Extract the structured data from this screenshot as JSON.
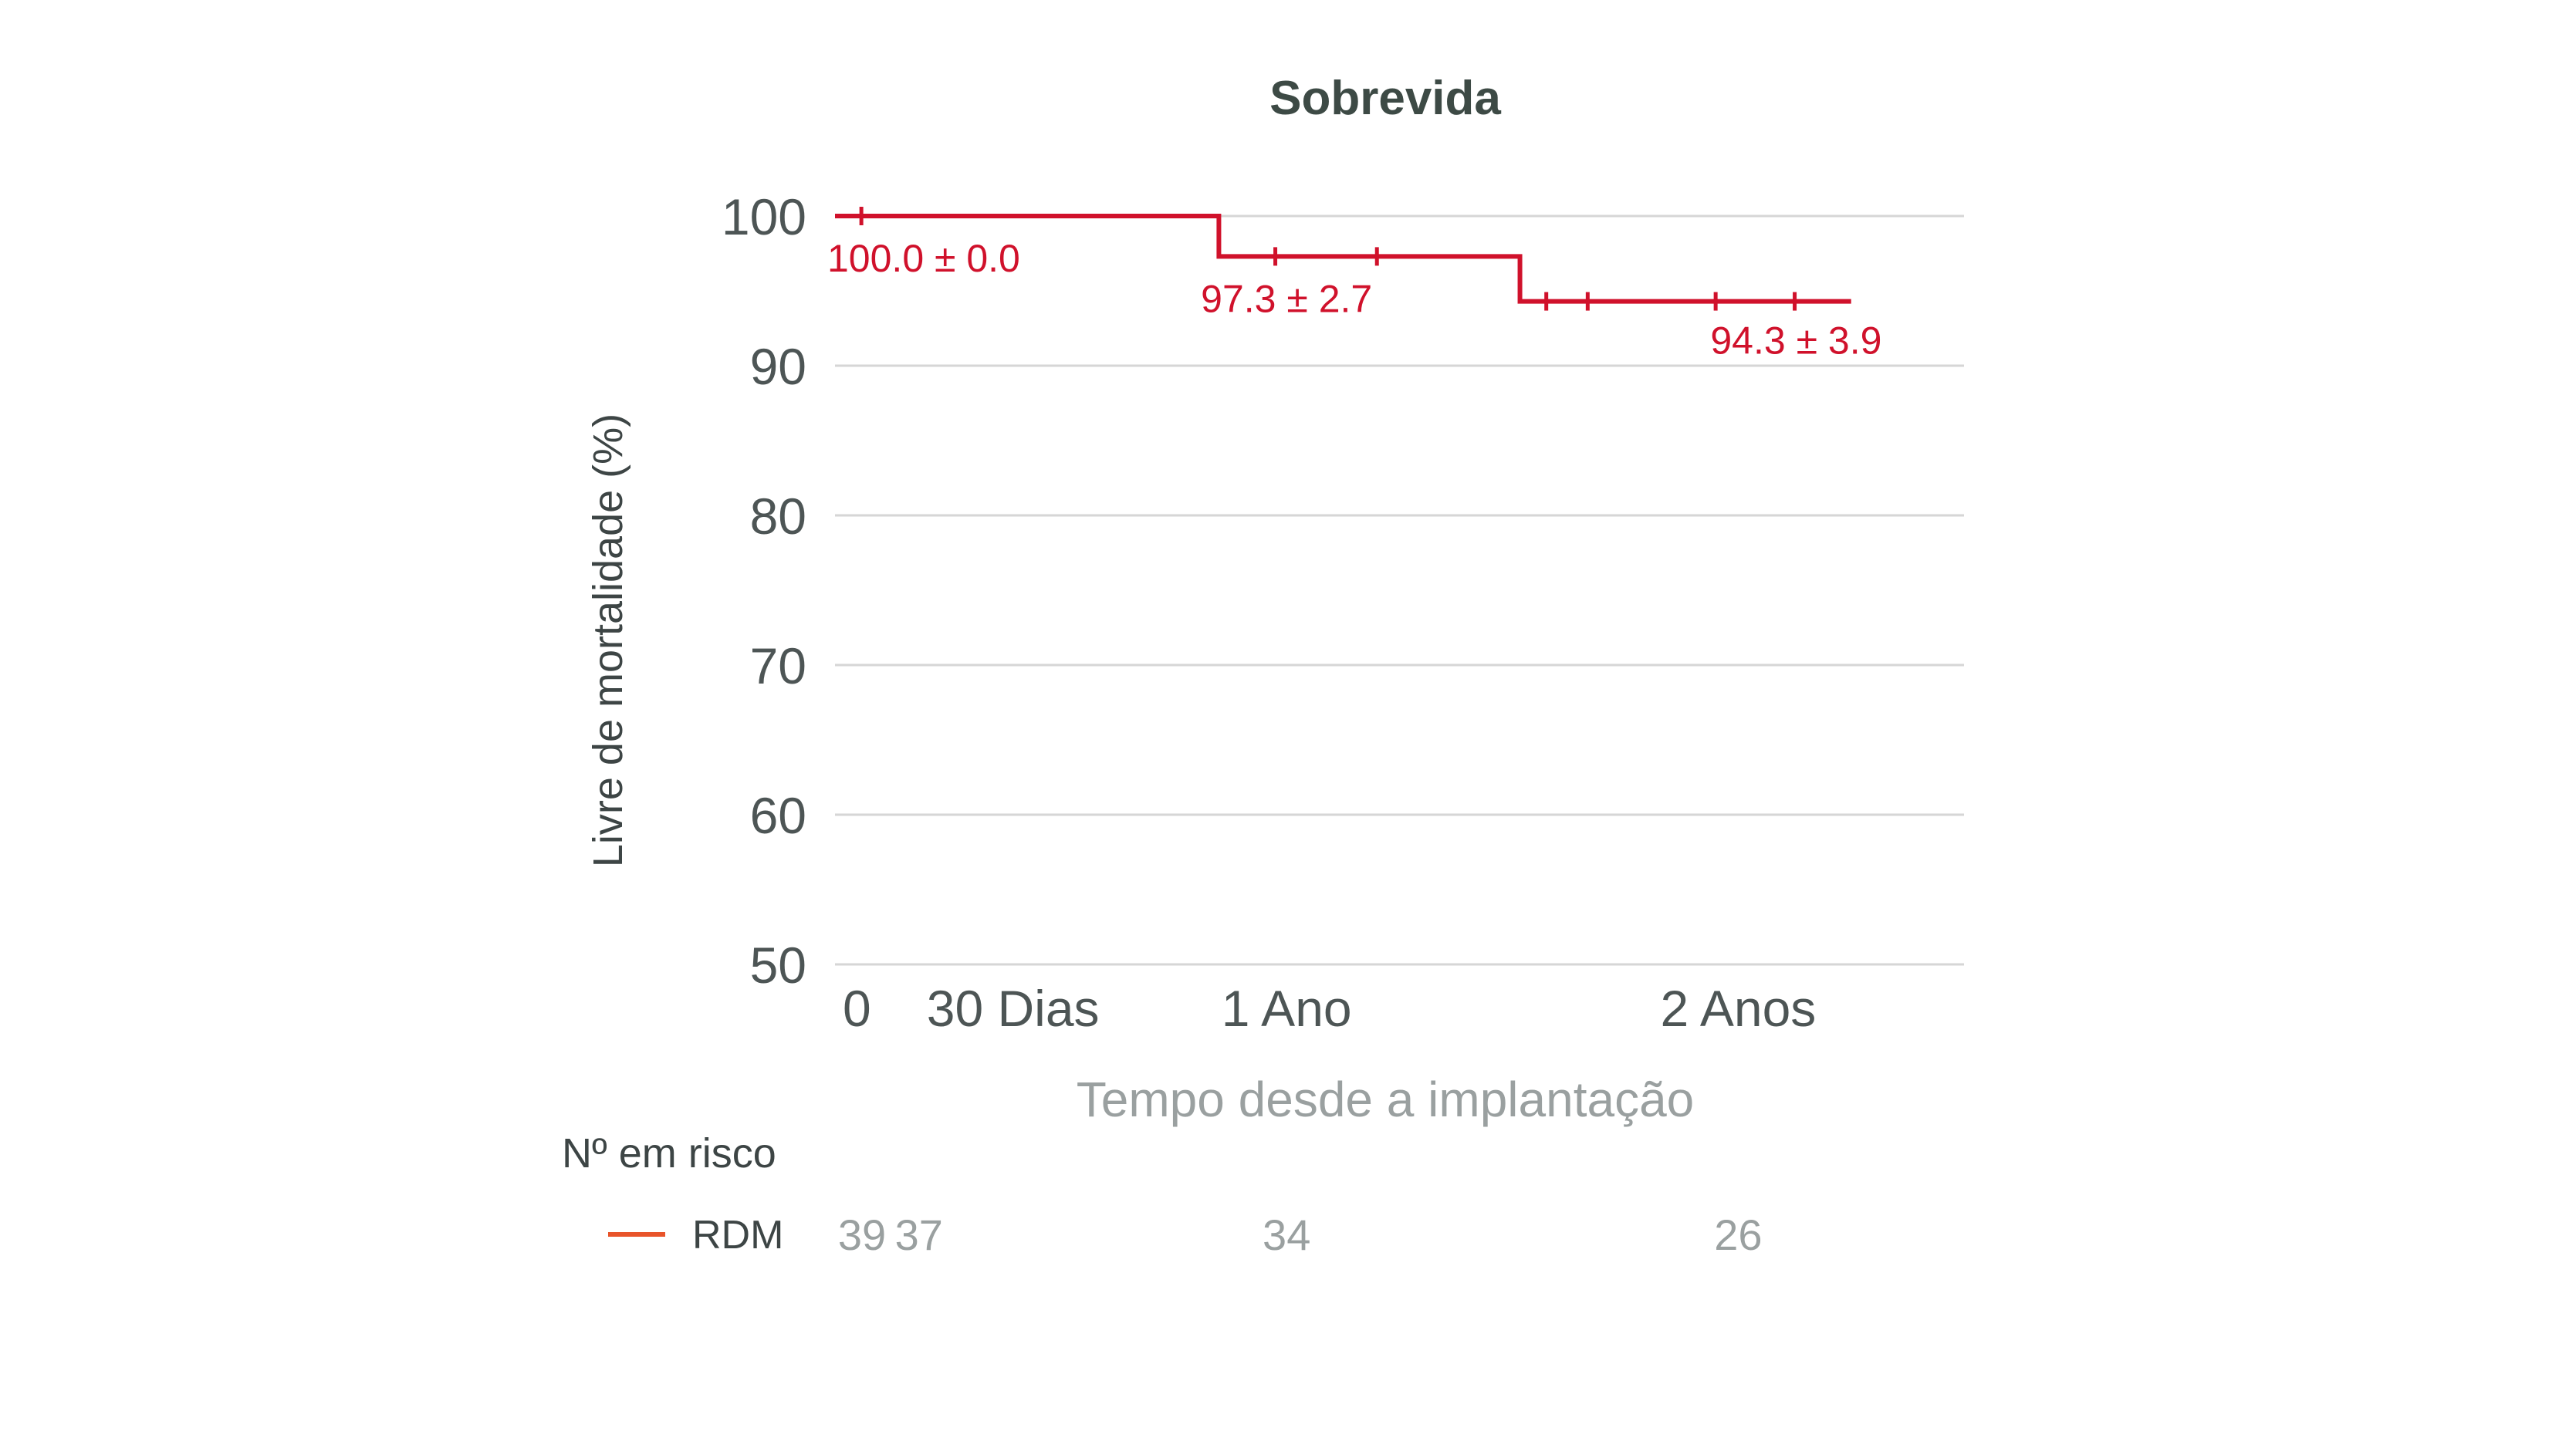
{
  "chart_data": {
    "type": "line",
    "title": "Sobrevida",
    "xlabel": "Tempo desde a implantação",
    "ylabel": "Livre de mortalidade (%)",
    "ylim": [
      50,
      100
    ],
    "yticks": [
      "100",
      "90",
      "80",
      "70",
      "60",
      "50"
    ],
    "xlim_months": [
      0,
      30
    ],
    "xticks": [
      {
        "label": "0",
        "month": 0
      },
      {
        "label": "30 Dias",
        "month": 1
      },
      {
        "label": "1 Ano",
        "month": 12
      },
      {
        "label": "2 Anos",
        "month": 24
      }
    ],
    "color": "#d0112b",
    "series": [
      {
        "name": "RDM",
        "steps": [
          {
            "x": 0,
            "y": 100.0
          },
          {
            "x": 10.2,
            "y": 97.3
          },
          {
            "x": 18.2,
            "y": 94.3
          },
          {
            "x": 27,
            "y": 94.3
          }
        ],
        "censor_ticks": [
          {
            "x": 0.7,
            "y": 100.0
          },
          {
            "x": 11.7,
            "y": 97.3
          },
          {
            "x": 14.4,
            "y": 97.3
          },
          {
            "x": 18.9,
            "y": 94.3
          },
          {
            "x": 20,
            "y": 94.3
          },
          {
            "x": 23.4,
            "y": 94.3
          },
          {
            "x": 25.5,
            "y": 94.3
          }
        ]
      }
    ],
    "annotations": [
      {
        "text": "100.0 ± 0.0",
        "x": 0,
        "y": 100.0
      },
      {
        "text": "97.3 ± 2.7",
        "x": 12,
        "y": 97.3
      },
      {
        "text": "94.3 ± 3.9",
        "x": 24,
        "y": 94.3
      }
    ],
    "risk_table": {
      "header": "Nº em risco",
      "label": "RDM",
      "legend_color": "#e8542a",
      "values": [
        {
          "value": "39",
          "month": 0
        },
        {
          "value": "37",
          "month": 1
        },
        {
          "value": "34",
          "month": 12
        },
        {
          "value": "26",
          "month": 24
        }
      ]
    }
  }
}
